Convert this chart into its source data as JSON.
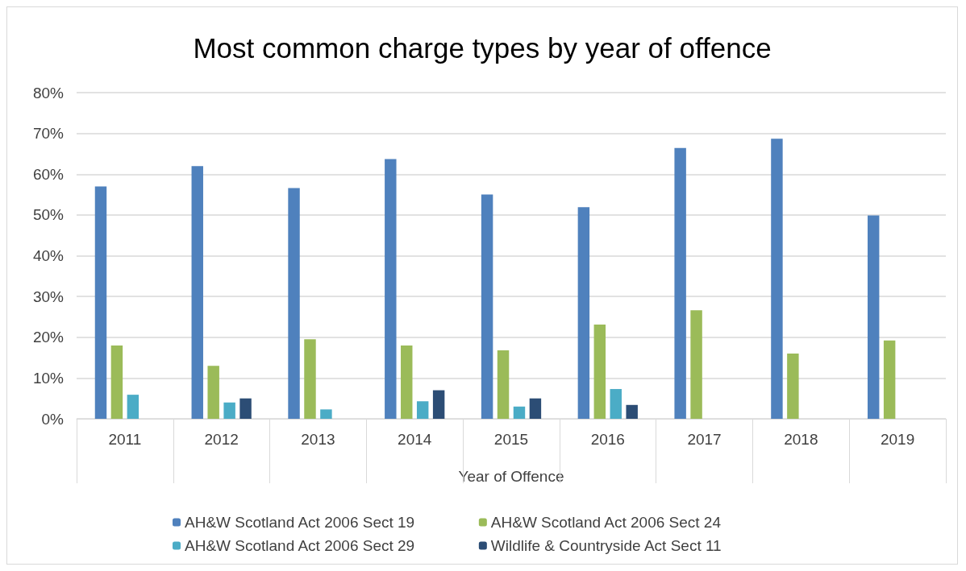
{
  "chart_data": {
    "type": "bar",
    "title": "Most common charge types by year of offence",
    "xlabel": "Year of Offence",
    "categories": [
      "2011",
      "2012",
      "2013",
      "2014",
      "2015",
      "2016",
      "2017",
      "2018",
      "2019"
    ],
    "series": [
      {
        "name": "AH&W Scotland Act 2006 Sect 19",
        "color": "#4f81bd",
        "values": [
          57,
          62,
          56.6,
          63.7,
          55,
          51.9,
          66.4,
          68.7,
          49.9
        ]
      },
      {
        "name": "AH&W Scotland Act 2006 Sect 24",
        "color": "#9bbb59",
        "values": [
          18,
          13,
          19.5,
          18,
          16.8,
          23.1,
          26.6,
          16,
          19.2
        ]
      },
      {
        "name": "AH&W Scotland Act 2006 Sect 29",
        "color": "#4bacc6",
        "values": [
          5.9,
          4,
          2.3,
          4.3,
          3,
          7.3,
          null,
          null,
          null
        ]
      },
      {
        "name": "Wildlife & Countryside Act Sect 11",
        "color": "#2c4d75",
        "values": [
          null,
          5,
          null,
          7,
          5,
          3.4,
          null,
          null,
          null
        ]
      }
    ],
    "ylim": [
      0,
      80
    ],
    "yticks": [
      {
        "value": 0,
        "label": "0%"
      },
      {
        "value": 10,
        "label": "10%"
      },
      {
        "value": 20,
        "label": "20%"
      },
      {
        "value": 30,
        "label": "30%"
      },
      {
        "value": 40,
        "label": "40%"
      },
      {
        "value": 50,
        "label": "50%"
      },
      {
        "value": 60,
        "label": "60%"
      },
      {
        "value": 70,
        "label": "70%"
      },
      {
        "value": 80,
        "label": "80%"
      }
    ],
    "grid": "y",
    "legend": "bottom"
  }
}
